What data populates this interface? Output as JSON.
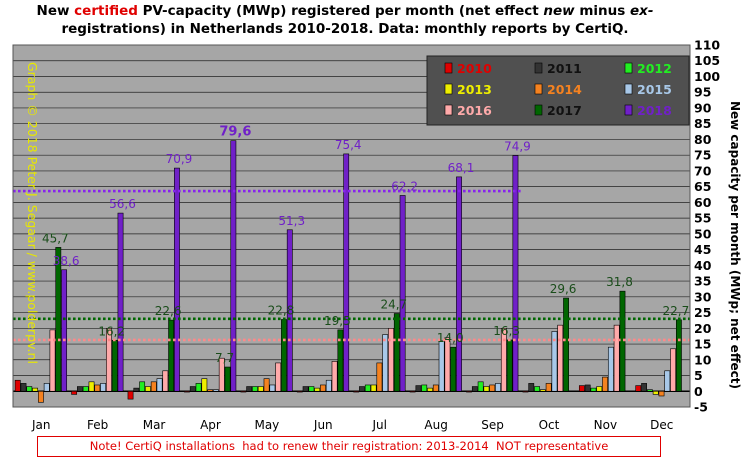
{
  "title": {
    "part1": "New ",
    "part2": "certified",
    "part3": " PV-capacity (MWp) registered per month (net effect ",
    "part4": "new",
    "part5": " minus ",
    "part6": "ex-",
    "part7": "registrations) in Netherlands 2010-2018. Data: monthly reports by CertiQ."
  },
  "watermark": "Graph © 2018 Peter J. Segaar / www.polderpv.nl",
  "note": "Note! CertiQ installations  had to renew their registration: 2013-2014  NOT representative",
  "chart_data": {
    "type": "bar",
    "ylabel": "New capacity per month (MWp; net effect)",
    "ylim": [
      -5,
      110
    ],
    "yticks": [
      -5,
      0,
      5,
      10,
      15,
      20,
      25,
      30,
      35,
      40,
      45,
      50,
      55,
      60,
      65,
      70,
      75,
      80,
      85,
      90,
      95,
      100,
      105,
      110
    ],
    "grid": true,
    "legend_position": "top-right",
    "categories": [
      "Jan",
      "Feb",
      "Mar",
      "Apr",
      "May",
      "Jun",
      "Jul",
      "Aug",
      "Sep",
      "Oct",
      "Nov",
      "Dec"
    ],
    "series": [
      {
        "name": "2010",
        "color": "#e00000",
        "values": [
          3.5,
          -1,
          -2.5,
          0,
          0,
          0,
          0,
          0,
          0,
          0,
          1.8,
          1.8
        ]
      },
      {
        "name": "2011",
        "color": "#333333",
        "values": [
          2.5,
          1.5,
          1,
          1.5,
          1.5,
          1.5,
          1.5,
          1.8,
          1.5,
          2.5,
          2,
          2.5
        ]
      },
      {
        "name": "2012",
        "color": "#22ee22",
        "values": [
          1.5,
          1.5,
          3,
          2.5,
          1.5,
          1.5,
          2,
          2,
          3,
          1.5,
          1,
          0.5
        ]
      },
      {
        "name": "2013",
        "color": "#eeee00",
        "values": [
          1,
          3,
          1.5,
          4,
          1.5,
          1,
          2,
          1,
          1.5,
          0.5,
          1.5,
          -1
        ]
      },
      {
        "name": "2014",
        "color": "#f58220",
        "values": [
          -3.5,
          2,
          3,
          0.5,
          4,
          2,
          9,
          2,
          2,
          2.5,
          4.5,
          -1.5
        ]
      },
      {
        "name": "2015",
        "color": "#a8c8e8",
        "values": [
          2.5,
          2.5,
          4,
          0.5,
          2,
          3.5,
          18,
          16,
          2.5,
          19,
          14,
          6.5
        ]
      },
      {
        "name": "2016",
        "color": "#ffaaaa",
        "values": [
          19.5,
          20,
          6.5,
          10.5,
          9,
          9.5,
          20,
          17,
          20,
          21,
          21,
          13.5
        ]
      },
      {
        "name": "2017",
        "color": "#006600",
        "values": [
          45.7,
          16.2,
          22.6,
          7.7,
          22.8,
          19.5,
          24.7,
          14.0,
          16.3,
          29.6,
          31.8,
          22.7
        ]
      },
      {
        "name": "2018",
        "color": "#7020c8",
        "values": [
          38.6,
          56.6,
          70.9,
          79.6,
          51.3,
          75.4,
          62.2,
          68.1,
          74.9,
          null,
          null,
          null
        ]
      }
    ],
    "data_labels": [
      {
        "series": "2017",
        "category": "Jan",
        "text": "45,7"
      },
      {
        "series": "2017",
        "category": "Feb",
        "text": "16,2"
      },
      {
        "series": "2017",
        "category": "Mar",
        "text": "22,6"
      },
      {
        "series": "2017",
        "category": "Apr",
        "text": "7,7"
      },
      {
        "series": "2017",
        "category": "May",
        "text": "22,8"
      },
      {
        "series": "2017",
        "category": "Jun",
        "text": "19,5"
      },
      {
        "series": "2017",
        "category": "Jul",
        "text": "24,7"
      },
      {
        "series": "2017",
        "category": "Aug",
        "text": "14,0"
      },
      {
        "series": "2017",
        "category": "Sep",
        "text": "16,3"
      },
      {
        "series": "2017",
        "category": "Oct",
        "text": "29,6"
      },
      {
        "series": "2017",
        "category": "Nov",
        "text": "31,8"
      },
      {
        "series": "2017",
        "category": "Dec",
        "text": "22,7"
      },
      {
        "series": "2018",
        "category": "Jan",
        "text": "38,6"
      },
      {
        "series": "2018",
        "category": "Feb",
        "text": "56,6"
      },
      {
        "series": "2018",
        "category": "Mar",
        "text": "70,9"
      },
      {
        "series": "2018",
        "category": "Apr",
        "text": "79,6",
        "bold": true
      },
      {
        "series": "2018",
        "category": "May",
        "text": "51,3"
      },
      {
        "series": "2018",
        "category": "Jun",
        "text": "75,4"
      },
      {
        "series": "2018",
        "category": "Jul",
        "text": "62,2"
      },
      {
        "series": "2018",
        "category": "Aug",
        "text": "68,1"
      },
      {
        "series": "2018",
        "category": "Sep",
        "text": "74,9"
      }
    ],
    "reference_lines": [
      {
        "series": "2018",
        "value": 63.6,
        "color": "#8822ee",
        "style": "dotted",
        "span": "Jan-Sep"
      },
      {
        "series": "2017",
        "value": 23.0,
        "color": "#006600",
        "style": "dotted",
        "span": "all"
      },
      {
        "series": "2016",
        "value": 16.3,
        "color": "#ff8888",
        "style": "dotted",
        "span": "all"
      }
    ]
  }
}
